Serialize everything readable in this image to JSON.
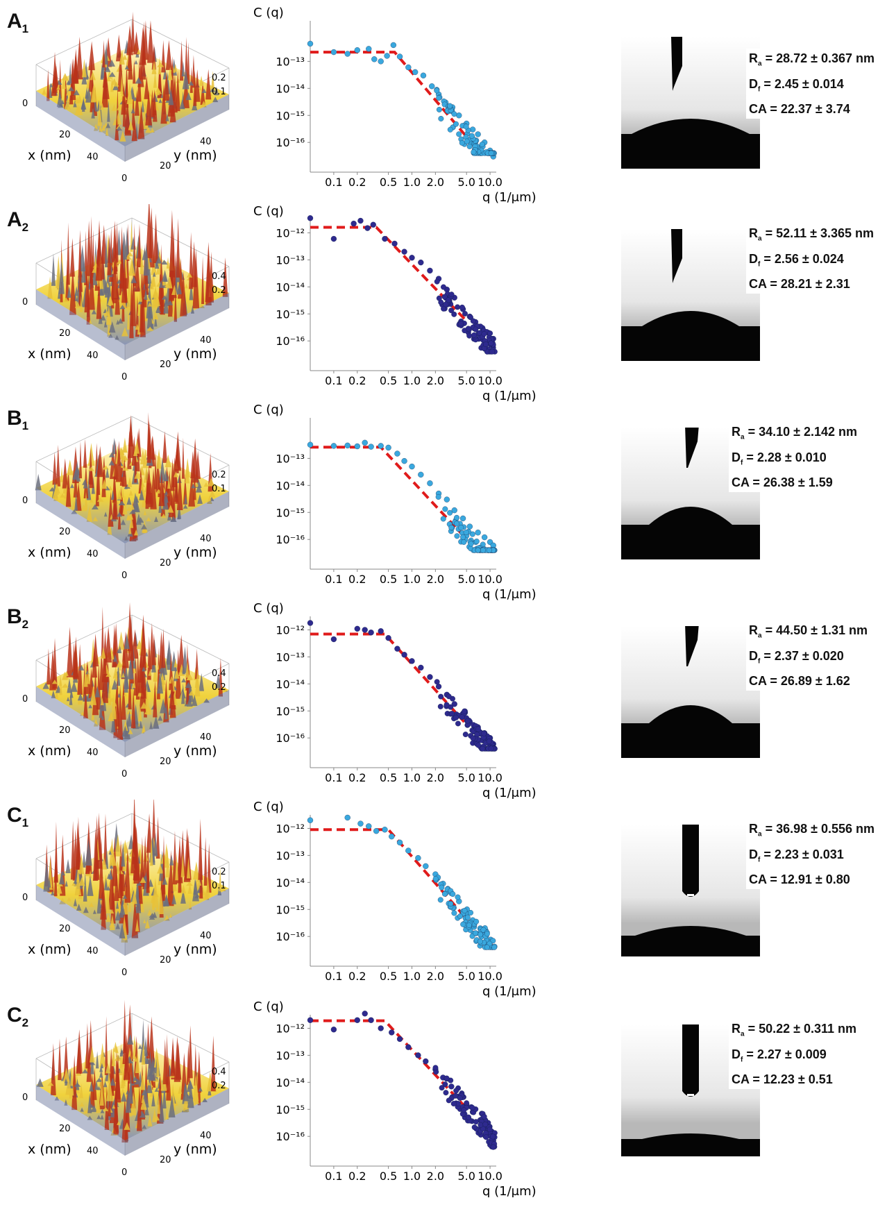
{
  "colors": {
    "light_series": "#3aa8de",
    "dark_series": "#2e2a8e",
    "fit_line": "#e01b1b",
    "surface_high": "#b8321a",
    "surface_mid": "#f0d23c",
    "surface_low": "#8a96b8"
  },
  "common": {
    "ylabel": "C (q)",
    "xlabel": "q (1/μm)",
    "x_ticks": [
      "0.1",
      "0.2",
      "0.5",
      "1.0",
      "2.0",
      "5.0",
      "10.0"
    ],
    "y_ticks": [
      "10⁻¹²",
      "10⁻¹³",
      "10⁻¹⁴",
      "10⁻¹⁵",
      "10⁻¹⁶"
    ],
    "surface_x_label": "x (nm)",
    "surface_y_label": "y (nm)",
    "surface_ticks": [
      "0",
      "20",
      "40"
    ]
  },
  "panels": [
    {
      "id": "A",
      "sub": "1",
      "z_ticks": [
        "0",
        "0.1",
        "0.2"
      ],
      "ra": "R",
      "ra_text": " = 28.72 ± 0.367 nm",
      "df_text": " = 2.45 ± 0.014",
      "ca_text": "CA = 22.37 ± 3.74",
      "series": "light",
      "y_tick_subset": [
        1,
        2,
        3,
        4
      ],
      "drop": "wide-needle"
    },
    {
      "id": "A",
      "sub": "2",
      "z_ticks": [
        "0",
        "0.2",
        "0.4"
      ],
      "ra": "R",
      "ra_text": " = 52.11 ± 3.365 nm",
      "df_text": " = 2.56 ± 0.024",
      "ca_text": "CA = 28.21 ± 2.31",
      "series": "dark",
      "y_tick_subset": [
        0,
        1,
        2,
        3,
        4
      ],
      "drop": "wide-needle"
    },
    {
      "id": "B",
      "sub": "1",
      "z_ticks": [
        "0",
        "0.1",
        "0.2"
      ],
      "ra": "R",
      "ra_text": " = 34.10 ± 2.142 nm",
      "df_text": " = 2.28 ± 0.010",
      "ca_text": "CA = 26.38 ± 1.59",
      "series": "light",
      "y_tick_subset": [
        1,
        2,
        3,
        4
      ],
      "drop": "short-needle"
    },
    {
      "id": "B",
      "sub": "2",
      "z_ticks": [
        "0",
        "0.2",
        "0.4"
      ],
      "ra": "R",
      "ra_text": " = 44.50 ± 1.31 nm",
      "df_text": " = 2.37 ± 0.020",
      "ca_text": "CA = 26.89 ± 1.62",
      "series": "dark",
      "y_tick_subset": [
        0,
        1,
        2,
        3,
        4
      ],
      "drop": "short-needle"
    },
    {
      "id": "C",
      "sub": "1",
      "z_ticks": [
        "0",
        "0.1",
        "0.2"
      ],
      "ra": "R",
      "ra_text": " = 36.98 ± 0.556 nm",
      "df_text": " = 2.23 ± 0.031",
      "ca_text": "CA = 12.91 ± 0.80",
      "series": "light",
      "y_tick_subset": [
        0,
        1,
        2,
        3,
        4
      ],
      "drop": "round-needle"
    },
    {
      "id": "C",
      "sub": "2",
      "z_ticks": [
        "0",
        "0.2",
        "0.4"
      ],
      "ra": "R",
      "ra_text": " = 50.22 ± 0.311 nm",
      "df_text": " = 2.27 ± 0.009",
      "ca_text": "CA = 12.23 ± 0.51",
      "series": "dark",
      "y_tick_subset": [
        0,
        1,
        2,
        3,
        4
      ],
      "drop": "round-needle"
    }
  ],
  "chart_data": [
    {
      "type": "scatter",
      "panel": "A1",
      "xlabel": "q (1/μm)",
      "ylabel": "C (q)",
      "x_scale": "log",
      "y_scale": "log",
      "xlim": [
        0.05,
        12
      ],
      "ylim": [
        1e-17,
        5e-13
      ],
      "fit": {
        "plateau": 2.2e-13,
        "knee_q": 0.6,
        "slope": -3.4
      },
      "points": [
        [
          0.05,
          4.5e-13
        ],
        [
          0.1,
          2.2e-13
        ],
        [
          0.15,
          1.9e-13
        ],
        [
          0.2,
          2.6e-13
        ],
        [
          0.28,
          2.9e-13
        ],
        [
          0.33,
          1.2e-13
        ],
        [
          0.4,
          1e-13
        ],
        [
          0.48,
          1.6e-13
        ],
        [
          0.58,
          4e-13
        ],
        [
          0.7,
          1.5e-13
        ],
        [
          0.9,
          6e-14
        ],
        [
          1.1,
          4e-14
        ],
        [
          1.4,
          3e-14
        ],
        [
          1.8,
          1.2e-14
        ],
        [
          2.2,
          6e-15
        ],
        [
          2.7,
          3e-15
        ],
        [
          3.3,
          2e-15
        ],
        [
          4.0,
          1e-15
        ],
        [
          5.0,
          5e-16
        ],
        [
          6.0,
          3e-16
        ],
        [
          7.0,
          2e-16
        ],
        [
          8.5,
          1e-16
        ],
        [
          10.0,
          5e-17
        ],
        [
          11.0,
          3e-17
        ]
      ]
    },
    {
      "type": "scatter",
      "panel": "A2",
      "xlabel": "q (1/μm)",
      "ylabel": "C (q)",
      "x_scale": "log",
      "y_scale": "log",
      "xlim": [
        0.05,
        12
      ],
      "ylim": [
        5e-17,
        5e-12
      ],
      "fit": {
        "plateau": 1.6e-12,
        "knee_q": 0.35,
        "slope": -3.0
      },
      "points": [
        [
          0.05,
          3.5e-12
        ],
        [
          0.1,
          6e-13
        ],
        [
          0.18,
          2.2e-12
        ],
        [
          0.22,
          2.8e-12
        ],
        [
          0.27,
          1.5e-12
        ],
        [
          0.32,
          2e-12
        ],
        [
          0.45,
          6e-13
        ],
        [
          0.6,
          4e-13
        ],
        [
          0.8,
          2e-13
        ],
        [
          1.0,
          1.2e-13
        ],
        [
          1.3,
          8e-14
        ],
        [
          1.7,
          4e-14
        ],
        [
          2.2,
          2e-14
        ],
        [
          2.8,
          8e-15
        ],
        [
          3.5,
          4e-15
        ],
        [
          4.5,
          1.5e-15
        ],
        [
          5.5,
          8e-16
        ],
        [
          6.5,
          5e-16
        ],
        [
          8.0,
          3e-16
        ],
        [
          9.5,
          2e-16
        ],
        [
          11.0,
          1.2e-16
        ]
      ]
    },
    {
      "type": "scatter",
      "panel": "B1",
      "xlabel": "q (1/μm)",
      "ylabel": "C (q)",
      "x_scale": "log",
      "y_scale": "log",
      "xlim": [
        0.05,
        12
      ],
      "ylim": [
        5e-17,
        5e-13
      ],
      "fit": {
        "plateau": 2.6e-13,
        "knee_q": 0.4,
        "slope": -3.1
      },
      "points": [
        [
          0.05,
          3.2e-13
        ],
        [
          0.1,
          2.9e-13
        ],
        [
          0.15,
          3e-13
        ],
        [
          0.2,
          2.8e-13
        ],
        [
          0.25,
          3.8e-13
        ],
        [
          0.3,
          2.7e-13
        ],
        [
          0.4,
          2.9e-13
        ],
        [
          0.5,
          2.5e-13
        ],
        [
          0.65,
          1.5e-13
        ],
        [
          0.8,
          8e-14
        ],
        [
          1.0,
          5e-14
        ],
        [
          1.3,
          2.5e-14
        ],
        [
          1.7,
          1.2e-14
        ],
        [
          2.2,
          5e-15
        ],
        [
          2.8,
          3e-15
        ],
        [
          3.5,
          1.2e-15
        ],
        [
          4.5,
          6e-16
        ],
        [
          5.5,
          3e-16
        ],
        [
          7.0,
          1.8e-16
        ],
        [
          8.5,
          1.2e-16
        ],
        [
          10.0,
          8e-17
        ],
        [
          11.0,
          6e-17
        ]
      ]
    },
    {
      "type": "scatter",
      "panel": "B2",
      "xlabel": "q (1/μm)",
      "ylabel": "C (q)",
      "x_scale": "log",
      "y_scale": "log",
      "xlim": [
        0.05,
        12
      ],
      "ylim": [
        3e-17,
        3e-12
      ],
      "fit": {
        "plateau": 7e-13,
        "knee_q": 0.45,
        "slope": -3.2
      },
      "points": [
        [
          0.05,
          1.8e-12
        ],
        [
          0.1,
          4.5e-13
        ],
        [
          0.2,
          1.1e-12
        ],
        [
          0.25,
          1e-12
        ],
        [
          0.3,
          8e-13
        ],
        [
          0.4,
          9e-13
        ],
        [
          0.5,
          5e-13
        ],
        [
          0.65,
          2e-13
        ],
        [
          0.8,
          1.2e-13
        ],
        [
          1.0,
          7e-14
        ],
        [
          1.3,
          4e-14
        ],
        [
          1.7,
          1.8e-14
        ],
        [
          2.2,
          8e-15
        ],
        [
          2.8,
          4e-15
        ],
        [
          3.5,
          1.8e-15
        ],
        [
          4.5,
          8e-16
        ],
        [
          5.5,
          4e-16
        ],
        [
          7.0,
          2.5e-16
        ],
        [
          8.5,
          1.5e-16
        ],
        [
          10.0,
          1e-16
        ],
        [
          11.0,
          6e-17
        ]
      ]
    },
    {
      "type": "scatter",
      "panel": "C1",
      "xlabel": "q (1/μm)",
      "ylabel": "C (q)",
      "x_scale": "log",
      "y_scale": "log",
      "xlim": [
        0.05,
        12
      ],
      "ylim": [
        3e-17,
        3e-12
      ],
      "fit": {
        "plateau": 9e-13,
        "knee_q": 0.5,
        "slope": -3.3
      },
      "points": [
        [
          0.05,
          2e-12
        ],
        [
          0.15,
          2.5e-12
        ],
        [
          0.22,
          1.5e-12
        ],
        [
          0.28,
          1.2e-12
        ],
        [
          0.35,
          8e-13
        ],
        [
          0.45,
          9e-13
        ],
        [
          0.55,
          5e-13
        ],
        [
          0.7,
          3e-13
        ],
        [
          0.9,
          1.5e-13
        ],
        [
          1.2,
          8e-14
        ],
        [
          1.5,
          4e-14
        ],
        [
          2.0,
          2e-14
        ],
        [
          2.5,
          9e-15
        ],
        [
          3.2,
          4e-15
        ],
        [
          4.0,
          2e-15
        ],
        [
          5.0,
          8e-16
        ],
        [
          6.0,
          4e-16
        ],
        [
          7.5,
          2e-16
        ],
        [
          9.0,
          1.2e-16
        ],
        [
          10.5,
          7e-17
        ]
      ]
    },
    {
      "type": "scatter",
      "panel": "C2",
      "xlabel": "q (1/μm)",
      "ylabel": "C (q)",
      "x_scale": "log",
      "y_scale": "log",
      "xlim": [
        0.05,
        12
      ],
      "ylim": [
        3e-17,
        4e-12
      ],
      "fit": {
        "plateau": 1.9e-12,
        "knee_q": 0.45,
        "slope": -3.1
      },
      "points": [
        [
          0.05,
          2e-12
        ],
        [
          0.1,
          9e-13
        ],
        [
          0.2,
          2e-12
        ],
        [
          0.25,
          3.5e-12
        ],
        [
          0.3,
          2e-12
        ],
        [
          0.4,
          1e-12
        ],
        [
          0.55,
          7e-13
        ],
        [
          0.7,
          4e-13
        ],
        [
          0.9,
          2e-13
        ],
        [
          1.2,
          1e-13
        ],
        [
          1.5,
          6e-14
        ],
        [
          2.0,
          3e-14
        ],
        [
          2.5,
          1.5e-14
        ],
        [
          3.2,
          7e-15
        ],
        [
          4.0,
          3e-15
        ],
        [
          5.0,
          1.5e-15
        ],
        [
          6.0,
          8e-16
        ],
        [
          7.5,
          4e-16
        ],
        [
          9.0,
          2e-16
        ],
        [
          10.5,
          1e-16
        ],
        [
          11.0,
          7e-17
        ]
      ]
    }
  ]
}
